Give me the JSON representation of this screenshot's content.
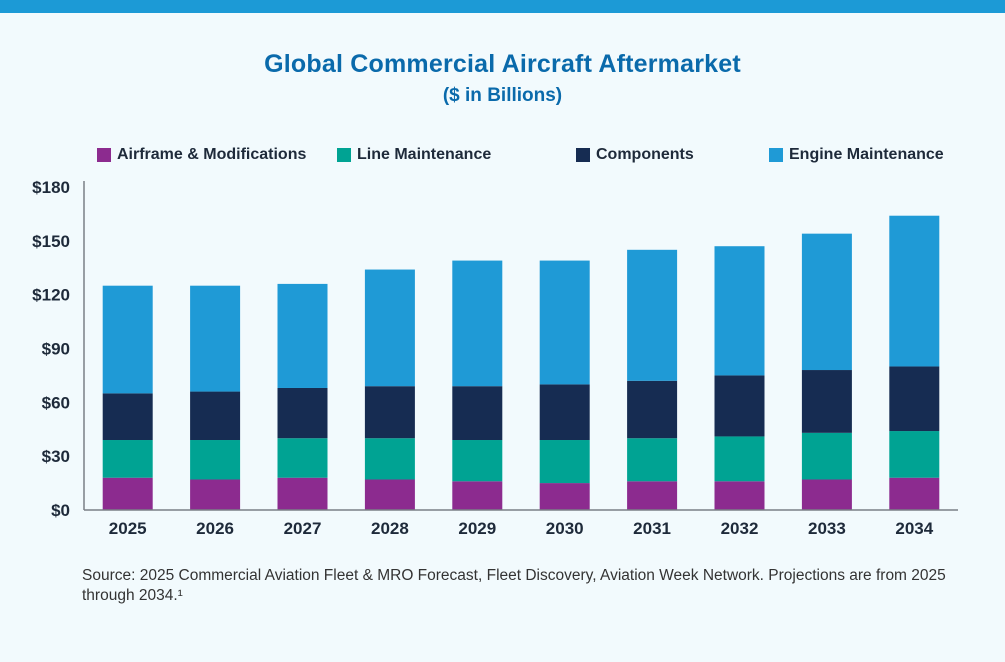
{
  "chart_data": {
    "type": "bar",
    "stacked": true,
    "title": "Global Commercial Aircraft Aftermarket",
    "subtitle": "($ in Billions)",
    "xlabel": "",
    "ylabel": "",
    "categories": [
      "2025",
      "2026",
      "2027",
      "2028",
      "2029",
      "2030",
      "2031",
      "2032",
      "2033",
      "2034"
    ],
    "series": [
      {
        "name": "Airframe & Modifications",
        "color": "#8c2b8f",
        "values": [
          18,
          17,
          18,
          17,
          16,
          15,
          16,
          16,
          17,
          18
        ]
      },
      {
        "name": "Line Maintenance",
        "color": "#00a393",
        "values": [
          21,
          22,
          22,
          23,
          23,
          24,
          24,
          25,
          26,
          26
        ]
      },
      {
        "name": "Components",
        "color": "#162c52",
        "values": [
          26,
          27,
          28,
          29,
          30,
          31,
          32,
          34,
          35,
          36
        ]
      },
      {
        "name": "Engine Maintenance",
        "color": "#1f9ad6",
        "values": [
          60,
          59,
          58,
          65,
          70,
          69,
          73,
          72,
          76,
          84
        ]
      }
    ],
    "ylim": [
      0,
      180
    ],
    "yticks": [
      0,
      30,
      60,
      90,
      120,
      150,
      180
    ],
    "ytick_labels": [
      "$0",
      "$30",
      "$60",
      "$90",
      "$120",
      "$150",
      "$180"
    ],
    "legend": "top",
    "grid": false
  },
  "source_note": "Source: 2025 Commercial Aviation Fleet & MRO Forecast, Fleet Discovery, Aviation Week Network. Projections are from 2025 through 2034.¹"
}
